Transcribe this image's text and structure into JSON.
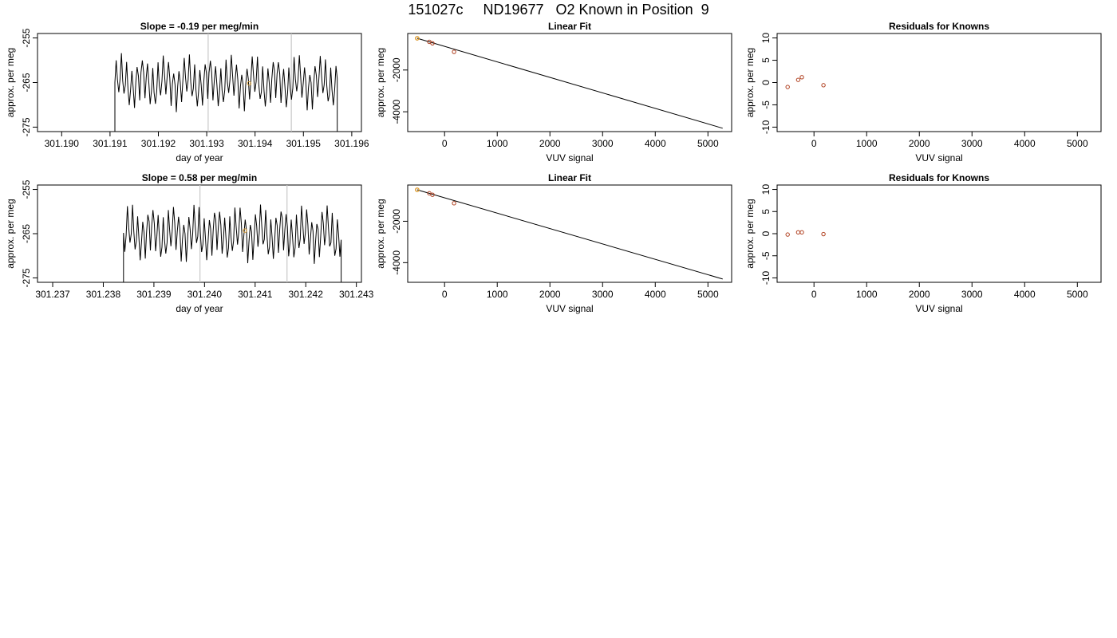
{
  "title": "151027c     ND19677   O2 Known in Position  9",
  "colors": {
    "trace": "#000000",
    "marker": "#e0a030",
    "point": "#b04020",
    "vline": "#c8c8c8",
    "fit": "#000000"
  },
  "chart_data": [
    {
      "type": "line",
      "title": "Slope =  -0.19  per meg/min",
      "xlabel": "day of year",
      "ylabel": "approx. per meg",
      "xlim": [
        301.1895,
        301.1962
      ],
      "ylim": [
        -276,
        -254
      ],
      "xticks": [
        "301.190",
        "301.191",
        "301.192",
        "301.193",
        "301.194",
        "301.195",
        "301.196"
      ],
      "yticks": [
        "-255",
        "-265",
        "-275"
      ],
      "trace_start": 301.1911,
      "trace_end": 301.1957,
      "level": -265,
      "amplitude": 4.2,
      "vlines": [
        301.19303,
        301.19475
      ],
      "marker": {
        "x": 301.19388,
        "y": -265.2
      }
    },
    {
      "type": "scatter",
      "title": "Linear Fit",
      "xlabel": "VUV signal",
      "ylabel": "approx. per meg",
      "xlim": [
        -700,
        5450
      ],
      "ylim": [
        -4950,
        -250
      ],
      "xticks": [
        "0",
        "1000",
        "2000",
        "3000",
        "4000",
        "5000"
      ],
      "yticks": [
        "-2000",
        "-4000"
      ],
      "points": [
        [
          -520,
          -480
        ],
        [
          -290,
          -650
        ],
        [
          -230,
          -720
        ],
        [
          180,
          -1130
        ]
      ],
      "highlight": [
        -520,
        -480
      ],
      "fit_line": [
        [
          -520,
          -480
        ],
        [
          5280,
          -4790
        ]
      ]
    },
    {
      "type": "scatter",
      "title": "Residuals for Knowns",
      "xlabel": "VUV signal",
      "ylabel": "approx. per meg",
      "xlim": [
        -700,
        5450
      ],
      "ylim": [
        -11,
        11
      ],
      "xticks": [
        "0",
        "1000",
        "2000",
        "3000",
        "4000",
        "5000"
      ],
      "yticks": [
        "10",
        "5",
        "0",
        "-5",
        "-10"
      ],
      "points": [
        [
          -500,
          -1
        ],
        [
          -300,
          0.6
        ],
        [
          -230,
          1.2
        ],
        [
          180,
          -0.6
        ]
      ]
    },
    {
      "type": "line",
      "title": "Slope =  0.58  per meg/min",
      "xlabel": "day of year",
      "ylabel": "approx. per meg",
      "xlim": [
        301.2367,
        301.2431
      ],
      "ylim": [
        -276,
        -254
      ],
      "xticks": [
        "301.237",
        "301.238",
        "301.239",
        "301.240",
        "301.241",
        "301.242",
        "301.243"
      ],
      "yticks": [
        "-255",
        "-265",
        "-275"
      ],
      "trace_start": 301.2384,
      "trace_end": 301.2427,
      "level": -265,
      "amplitude": 4.5,
      "vlines": [
        301.23991,
        301.24163
      ],
      "marker": {
        "x": 301.2408,
        "y": -264.3
      }
    },
    {
      "type": "scatter",
      "title": "Linear Fit",
      "xlabel": "VUV signal",
      "ylabel": "approx. per meg",
      "xlim": [
        -700,
        5450
      ],
      "ylim": [
        -4950,
        -250
      ],
      "xticks": [
        "0",
        "1000",
        "2000",
        "3000",
        "4000",
        "5000"
      ],
      "yticks": [
        "-2000",
        "-4000"
      ],
      "points": [
        [
          -520,
          -480
        ],
        [
          -290,
          -650
        ],
        [
          -230,
          -720
        ],
        [
          180,
          -1130
        ]
      ],
      "highlight": [
        -520,
        -480
      ],
      "fit_line": [
        [
          -520,
          -480
        ],
        [
          5280,
          -4790
        ]
      ]
    },
    {
      "type": "scatter",
      "title": "Residuals for Knowns",
      "xlabel": "VUV signal",
      "ylabel": "approx. per meg",
      "xlim": [
        -700,
        5450
      ],
      "ylim": [
        -11,
        11
      ],
      "xticks": [
        "0",
        "1000",
        "2000",
        "3000",
        "4000",
        "5000"
      ],
      "yticks": [
        "10",
        "5",
        "0",
        "-5",
        "-10"
      ],
      "points": [
        [
          -500,
          -0.2
        ],
        [
          -300,
          0.3
        ],
        [
          -230,
          0.3
        ],
        [
          180,
          -0.1
        ]
      ]
    }
  ]
}
